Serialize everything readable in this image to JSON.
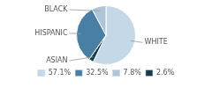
{
  "chart_data": {
    "type": "pie",
    "categories": [
      "WHITE",
      "ASIAN",
      "HISPANIC",
      "BLACK"
    ],
    "values": [
      57.1,
      2.6,
      32.5,
      7.8
    ],
    "colors": [
      "#c5d8e8",
      "#1a3a52",
      "#4a7fa5",
      "#b0c4d8"
    ],
    "legend": "bottom",
    "legend_labels": [
      "57.1%",
      "32.5%",
      "7.8%",
      "2.6%"
    ],
    "legend_colors": [
      "#c5d8e8",
      "#4a7fa5",
      "#b0c4d8",
      "#1a3a52"
    ]
  }
}
